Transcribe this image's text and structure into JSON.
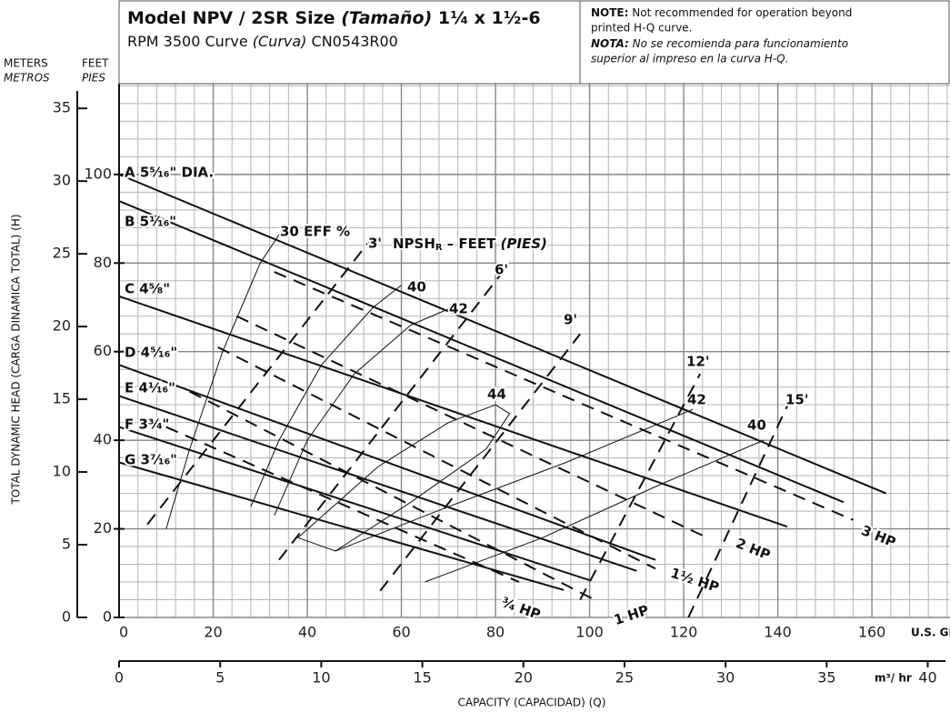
{
  "chart_data": {
    "type": "pump-curve",
    "title": "Model NPV / 2SR Size",
    "title_italic": "(Tamaño)",
    "title_size": "1¹⁄₄ x 1¹⁄₂-6",
    "subtitle": "RPM 3500 Curve",
    "subtitle_italic": "(Curva)",
    "subtitle_code": "CN0543R00",
    "note_label": "NOTE:",
    "note_lines": [
      "Not recommended for operation beyond",
      "printed H-Q curve."
    ],
    "nota_label": "NOTA:",
    "nota_lines": [
      "No se recomienda para funcionamiento",
      "superior al impreso en la curva H-Q."
    ],
    "y_label": "TOTAL DYNAMIC HEAD (CARGA DINAMICA TOTAL) (H)",
    "y_unit": "FEET",
    "y_unit_es": "PIES",
    "y2_unit": "METERS",
    "y2_unit_es": "METROS",
    "x_unit": "U.S. GPM",
    "x2_unit": "m³/ hr",
    "x_label": "CAPACITY (CAPACIDAD) (Q)",
    "npsh_label": [
      "NPSH",
      "R",
      "– FEET",
      "(PIES)"
    ],
    "xlim": [
      0,
      176.6
    ],
    "xticks": [
      0,
      20,
      40,
      60,
      80,
      100,
      120,
      140,
      160
    ],
    "x2lim": [
      0,
      41.1
    ],
    "x2ticks": [
      0,
      5,
      10,
      15,
      20,
      25,
      30,
      35,
      40
    ],
    "ylim": [
      0,
      120.5
    ],
    "yticks": [
      0,
      20,
      40,
      60,
      80,
      100
    ],
    "y2lim": [
      0,
      36.7
    ],
    "y2ticks": [
      0,
      5,
      10,
      15,
      20,
      25,
      30,
      35
    ],
    "grid": true,
    "minor_grid": {
      "x": 4,
      "y": 4
    },
    "color": "#111",
    "series": [
      {
        "name": "A 5⁵⁄₁₆\" DIA.",
        "line_style": "solid",
        "x": [
          0,
          163
        ],
        "values": [
          100,
          28
        ]
      },
      {
        "name": "B 5¹⁄₁₆\"",
        "line_style": "solid",
        "x": [
          0,
          154
        ],
        "values": [
          94,
          26
        ]
      },
      {
        "name": "C 4⁵⁄₈\"",
        "line_style": "solid",
        "x": [
          0,
          142
        ],
        "values": [
          72.5,
          20.5
        ]
      },
      {
        "name": "D 4⁵⁄₁₆\"",
        "line_style": "solid",
        "x": [
          0,
          114
        ],
        "values": [
          57,
          13
        ]
      },
      {
        "name": "E 4¹⁄₁₆\"",
        "line_style": "solid",
        "x": [
          0,
          110
        ],
        "values": [
          50,
          10.5
        ]
      },
      {
        "name": "F 3³⁄₄\"",
        "line_style": "solid",
        "x": [
          0,
          100
        ],
        "values": [
          43,
          8.4
        ]
      },
      {
        "name": "G 3⁷⁄₁₆\"",
        "line_style": "solid",
        "x": [
          0,
          94.5
        ],
        "values": [
          35,
          6.2
        ]
      },
      {
        "name": "30 EFF %",
        "line_style": "thin",
        "x": [
          10,
          15,
          22,
          30,
          35
        ],
        "values": [
          20,
          38,
          60,
          80,
          88
        ]
      },
      {
        "name": "40",
        "line_style": "thin",
        "x": [
          28,
          34,
          43,
          54,
          60
        ],
        "values": [
          25,
          40,
          57,
          70,
          75
        ]
      },
      {
        "name": "42",
        "line_style": "thin",
        "x": [
          33,
          40,
          50,
          62,
          73
        ],
        "values": [
          23,
          40,
          55,
          66,
          71
        ]
      },
      {
        "name": "44",
        "line_style": "thin",
        "x": [
          38,
          55,
          70,
          80,
          83,
          78,
          62,
          46,
          38
        ],
        "values": [
          18,
          34,
          44,
          48,
          46,
          38,
          26,
          15,
          18
        ]
      },
      {
        "name": "42",
        "line_style": "thin",
        "x": [
          46,
          70,
          95,
          122
        ],
        "values": [
          15,
          25,
          35,
          47
        ]
      },
      {
        "name": "40",
        "line_style": "thin",
        "x": [
          65,
          90,
          115,
          137
        ],
        "values": [
          8,
          18,
          30,
          40
        ]
      },
      {
        "name": "3 HP",
        "line_style": "dashed",
        "x": [
          33,
          156
        ],
        "values": [
          78,
          22
        ]
      },
      {
        "name": "2 HP",
        "line_style": "dashed",
        "x": [
          25,
          125
        ],
        "values": [
          68,
          18
        ]
      },
      {
        "name": "1¹⁄₂ HP",
        "line_style": "dashed",
        "x": [
          21,
          114
        ],
        "values": [
          61,
          11
        ]
      },
      {
        "name": "1 HP",
        "line_style": "dashed",
        "x": [
          15,
          101
        ],
        "values": [
          51,
          4
        ]
      },
      {
        "name": "³⁄₄ HP",
        "line_style": "dashed",
        "x": [
          10,
          85
        ],
        "values": [
          43,
          8
        ]
      },
      {
        "name": "3'",
        "line_style": "dashed",
        "x": [
          6,
          54
        ],
        "values": [
          21,
          86
        ]
      },
      {
        "name": "6'",
        "line_style": "dashed",
        "x": [
          34,
          83
        ],
        "values": [
          13,
          80
        ]
      },
      {
        "name": "9'",
        "line_style": "dashed",
        "x": [
          55.5,
          98
        ],
        "values": [
          6,
          64
        ]
      },
      {
        "name": "12'",
        "line_style": "dashed",
        "x": [
          98,
          123.5
        ],
        "values": [
          4,
          55
        ]
      },
      {
        "name": "15'",
        "line_style": "dashed",
        "x": [
          121,
          143
        ],
        "values": [
          0,
          50
        ]
      }
    ]
  }
}
